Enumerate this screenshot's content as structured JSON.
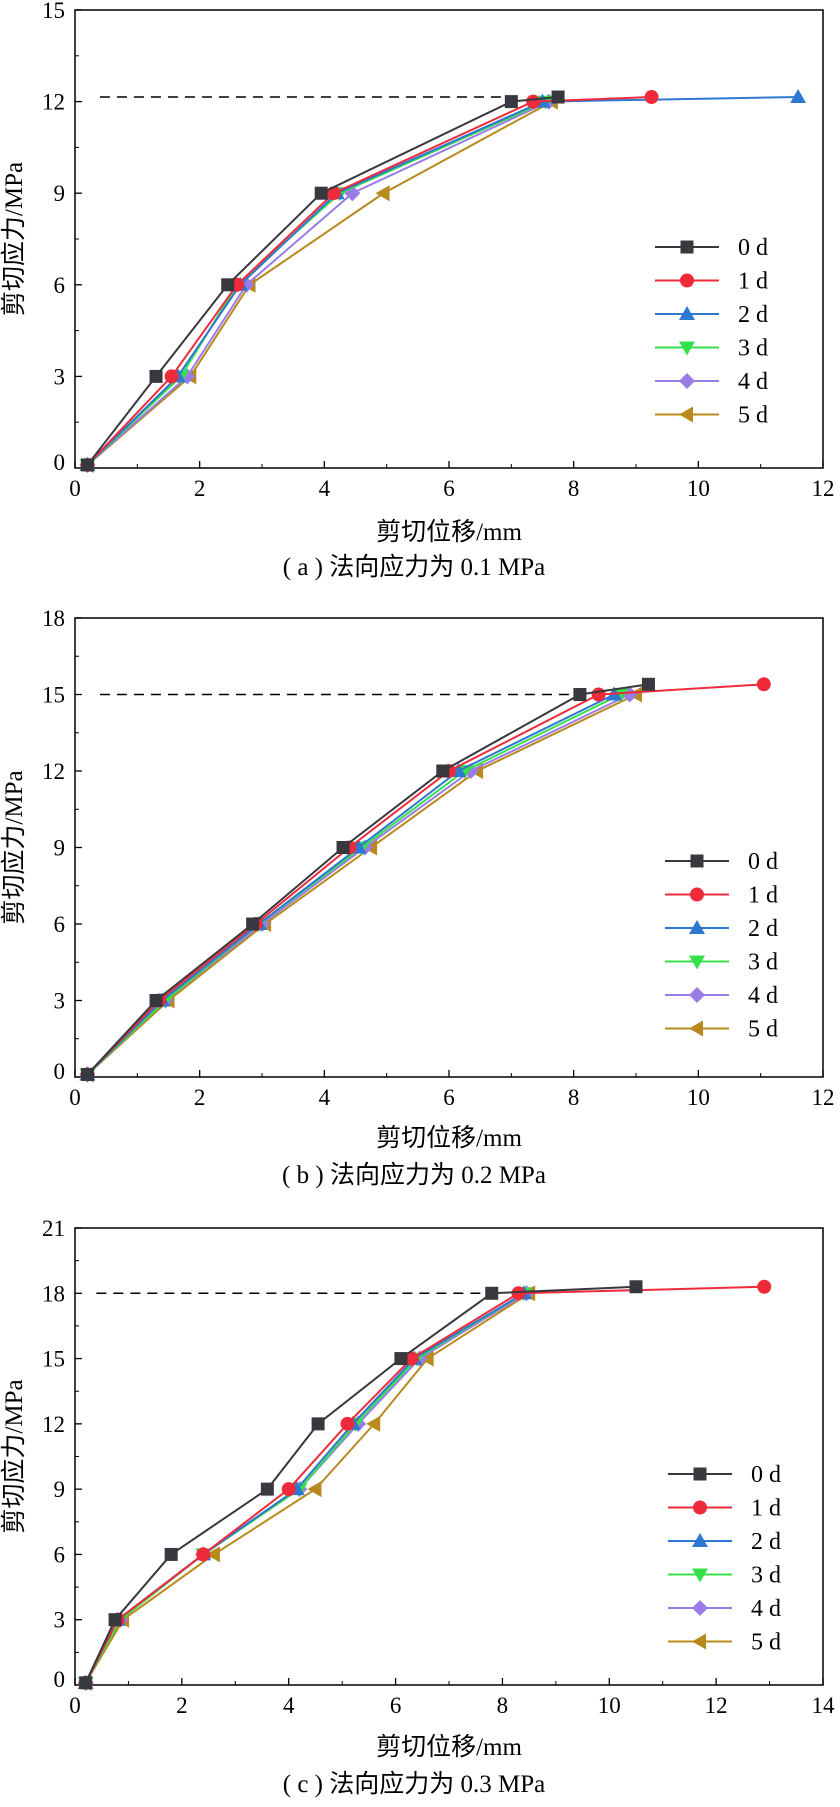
{
  "colors": {
    "0 d": "#37393f",
    "1 d": "#ee2b3a",
    "2 d": "#2f78d2",
    "3 d": "#35e04a",
    "4 d": "#9a7ce6",
    "5 d": "#b8891c",
    "axis": "#000000",
    "reference_line": "#000000"
  },
  "chart_data": [
    {
      "type": "line",
      "caption": "( a ) 法向应力为 0.1 MPa",
      "xlabel": "剪切位移/mm",
      "ylabel": "剪切应力/MPa",
      "xlim": [
        0,
        12
      ],
      "ylim": [
        0,
        15
      ],
      "xticks": [
        0,
        2,
        4,
        6,
        8,
        10,
        12
      ],
      "yticks": [
        3,
        6,
        9,
        12,
        15
      ],
      "reference_y": 12.15,
      "legend_position": "right-middle",
      "series": [
        {
          "name": "0 d",
          "marker": "square",
          "points": [
            [
              0.2,
              0.1
            ],
            [
              1.3,
              3
            ],
            [
              2.45,
              6
            ],
            [
              3.95,
              9
            ],
            [
              7.0,
              12
            ],
            [
              7.75,
              12.15
            ]
          ]
        },
        {
          "name": "1 d",
          "marker": "circle",
          "points": [
            [
              0.2,
              0.1
            ],
            [
              1.55,
              3
            ],
            [
              2.6,
              6
            ],
            [
              4.15,
              9
            ],
            [
              7.35,
              12
            ],
            [
              9.25,
              12.15
            ]
          ]
        },
        {
          "name": "2 d",
          "marker": "triangle-up",
          "points": [
            [
              0.2,
              0.1
            ],
            [
              1.65,
              3
            ],
            [
              2.65,
              6
            ],
            [
              4.2,
              9
            ],
            [
              7.5,
              12
            ],
            [
              11.6,
              12.15
            ]
          ]
        },
        {
          "name": "3 d",
          "marker": "triangle-down",
          "points": [
            [
              0.2,
              0.1
            ],
            [
              1.7,
              3
            ],
            [
              2.6,
              6
            ],
            [
              4.25,
              9
            ],
            [
              7.55,
              12
            ]
          ]
        },
        {
          "name": "4 d",
          "marker": "diamond",
          "points": [
            [
              0.2,
              0.1
            ],
            [
              1.8,
              3
            ],
            [
              2.75,
              6
            ],
            [
              4.45,
              9
            ],
            [
              7.6,
              12
            ]
          ]
        },
        {
          "name": "5 d",
          "marker": "triangle-left",
          "points": [
            [
              0.2,
              0.1
            ],
            [
              1.85,
              3
            ],
            [
              2.8,
              6
            ],
            [
              4.95,
              9
            ],
            [
              7.65,
              12
            ]
          ]
        }
      ]
    },
    {
      "type": "line",
      "caption": "( b ) 法向应力为 0.2 MPa",
      "xlabel": "剪切位移/mm",
      "ylabel": "剪切应力/MPa",
      "xlim": [
        0,
        12
      ],
      "ylim": [
        0,
        18
      ],
      "xticks": [
        0,
        2,
        4,
        6,
        8,
        10,
        12
      ],
      "yticks": [
        3,
        6,
        9,
        12,
        15,
        18
      ],
      "reference_y": 15,
      "legend_position": "right-middle",
      "series": [
        {
          "name": "0 d",
          "marker": "square",
          "points": [
            [
              0.2,
              0.1
            ],
            [
              1.3,
              3
            ],
            [
              2.85,
              6
            ],
            [
              4.3,
              9
            ],
            [
              5.9,
              12
            ],
            [
              8.1,
              15
            ],
            [
              9.2,
              15.4
            ]
          ]
        },
        {
          "name": "1 d",
          "marker": "circle",
          "points": [
            [
              0.2,
              0.1
            ],
            [
              1.35,
              3
            ],
            [
              2.9,
              6
            ],
            [
              4.4,
              9
            ],
            [
              6.0,
              12
            ],
            [
              8.4,
              15
            ],
            [
              11.05,
              15.4
            ]
          ]
        },
        {
          "name": "2 d",
          "marker": "triangle-up",
          "points": [
            [
              0.2,
              0.1
            ],
            [
              1.4,
              3
            ],
            [
              2.95,
              6
            ],
            [
              4.55,
              9
            ],
            [
              6.15,
              12
            ],
            [
              8.65,
              15
            ]
          ]
        },
        {
          "name": "3 d",
          "marker": "triangle-down",
          "points": [
            [
              0.2,
              0.1
            ],
            [
              1.45,
              3
            ],
            [
              2.95,
              6
            ],
            [
              4.6,
              9
            ],
            [
              6.25,
              12
            ],
            [
              8.75,
              15
            ]
          ]
        },
        {
          "name": "4 d",
          "marker": "diamond",
          "points": [
            [
              0.2,
              0.1
            ],
            [
              1.45,
              3
            ],
            [
              3.0,
              6
            ],
            [
              4.65,
              9
            ],
            [
              6.35,
              12
            ],
            [
              8.9,
              15
            ]
          ]
        },
        {
          "name": "5 d",
          "marker": "triangle-left",
          "points": [
            [
              0.2,
              0.1
            ],
            [
              1.5,
              3
            ],
            [
              3.05,
              6
            ],
            [
              4.75,
              9
            ],
            [
              6.45,
              12
            ],
            [
              9.0,
              15
            ]
          ]
        }
      ]
    },
    {
      "type": "line",
      "caption": "( c ) 法向应力为 0.3 MPa",
      "xlabel": "剪切位移/mm",
      "ylabel": "剪切应力/MPa",
      "xlim": [
        0,
        14
      ],
      "ylim": [
        0,
        21
      ],
      "xticks": [
        0,
        2,
        4,
        6,
        8,
        10,
        12,
        14
      ],
      "yticks": [
        3,
        6,
        9,
        12,
        15,
        18,
        21
      ],
      "reference_y": 18,
      "legend_position": "right-bottom",
      "series": [
        {
          "name": "0 d",
          "marker": "square",
          "points": [
            [
              0.2,
              0.1
            ],
            [
              0.75,
              3
            ],
            [
              1.8,
              6
            ],
            [
              3.6,
              9
            ],
            [
              4.55,
              12
            ],
            [
              6.1,
              15
            ],
            [
              7.8,
              18
            ],
            [
              10.5,
              18.3
            ]
          ]
        },
        {
          "name": "1 d",
          "marker": "circle",
          "points": [
            [
              0.2,
              0.1
            ],
            [
              0.8,
              3
            ],
            [
              2.4,
              6
            ],
            [
              4.0,
              9
            ],
            [
              5.1,
              12
            ],
            [
              6.3,
              15
            ],
            [
              8.3,
              18
            ],
            [
              12.9,
              18.3
            ]
          ]
        },
        {
          "name": "2 d",
          "marker": "triangle-up",
          "points": [
            [
              0.2,
              0.1
            ],
            [
              0.8,
              3
            ],
            [
              2.4,
              6
            ],
            [
              4.15,
              9
            ],
            [
              5.2,
              12
            ],
            [
              6.35,
              15
            ],
            [
              8.4,
              18
            ]
          ]
        },
        {
          "name": "3 d",
          "marker": "triangle-down",
          "points": [
            [
              0.2,
              0.1
            ],
            [
              0.85,
              3
            ],
            [
              2.4,
              6
            ],
            [
              4.2,
              9
            ],
            [
              5.25,
              12
            ],
            [
              6.4,
              15
            ],
            [
              8.4,
              18
            ]
          ]
        },
        {
          "name": "4 d",
          "marker": "diamond",
          "points": [
            [
              0.2,
              0.1
            ],
            [
              0.85,
              3
            ],
            [
              2.4,
              6
            ],
            [
              4.2,
              9
            ],
            [
              5.3,
              12
            ],
            [
              6.45,
              15
            ],
            [
              8.45,
              18
            ]
          ]
        },
        {
          "name": "5 d",
          "marker": "triangle-left",
          "points": [
            [
              0.2,
              0.1
            ],
            [
              0.9,
              3
            ],
            [
              2.6,
              6
            ],
            [
              4.5,
              9
            ],
            [
              5.6,
              12
            ],
            [
              6.6,
              15
            ],
            [
              8.5,
              18
            ]
          ]
        }
      ]
    }
  ]
}
